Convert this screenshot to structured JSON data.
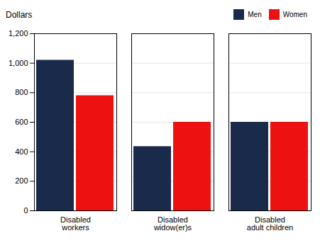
{
  "chart_data": {
    "type": "bar",
    "ylabel": "Dollars",
    "categories": [
      "Disabled\nworkers",
      "Disabled\nwidow(er)s",
      "Disabled\nadult children"
    ],
    "series": [
      {
        "name": "Men",
        "color": "#1a2a4a",
        "values": [
          1020,
          435,
          600
        ]
      },
      {
        "name": "Women",
        "color": "#ee1111",
        "values": [
          780,
          600,
          600
        ]
      }
    ],
    "ylim": [
      0,
      1200
    ],
    "yticks": [
      0,
      200,
      400,
      600,
      800,
      {
        "value": 1000,
        "label": "1,000"
      },
      {
        "value": 1200,
        "label": "1,200"
      }
    ],
    "grid": true,
    "legend": "upper right"
  }
}
